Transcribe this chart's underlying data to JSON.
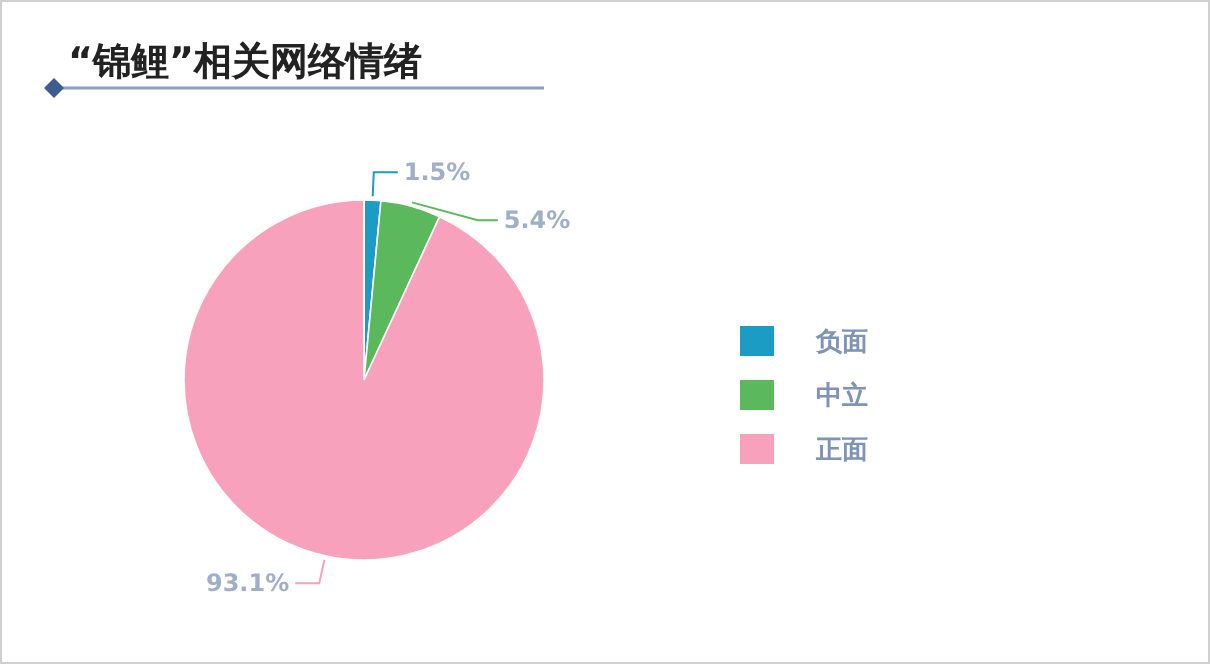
{
  "chart_data": {
    "type": "pie",
    "title": "“锦鲤”相关网络情绪",
    "categories": [
      "负面",
      "中立",
      "正面"
    ],
    "values": [
      1.5,
      5.4,
      93.1
    ],
    "colors": [
      "#1b9cc4",
      "#5cb85c",
      "#f8a1bc"
    ],
    "value_labels": [
      "1.5%",
      "5.4%",
      "93.1%"
    ],
    "legend": "right"
  }
}
